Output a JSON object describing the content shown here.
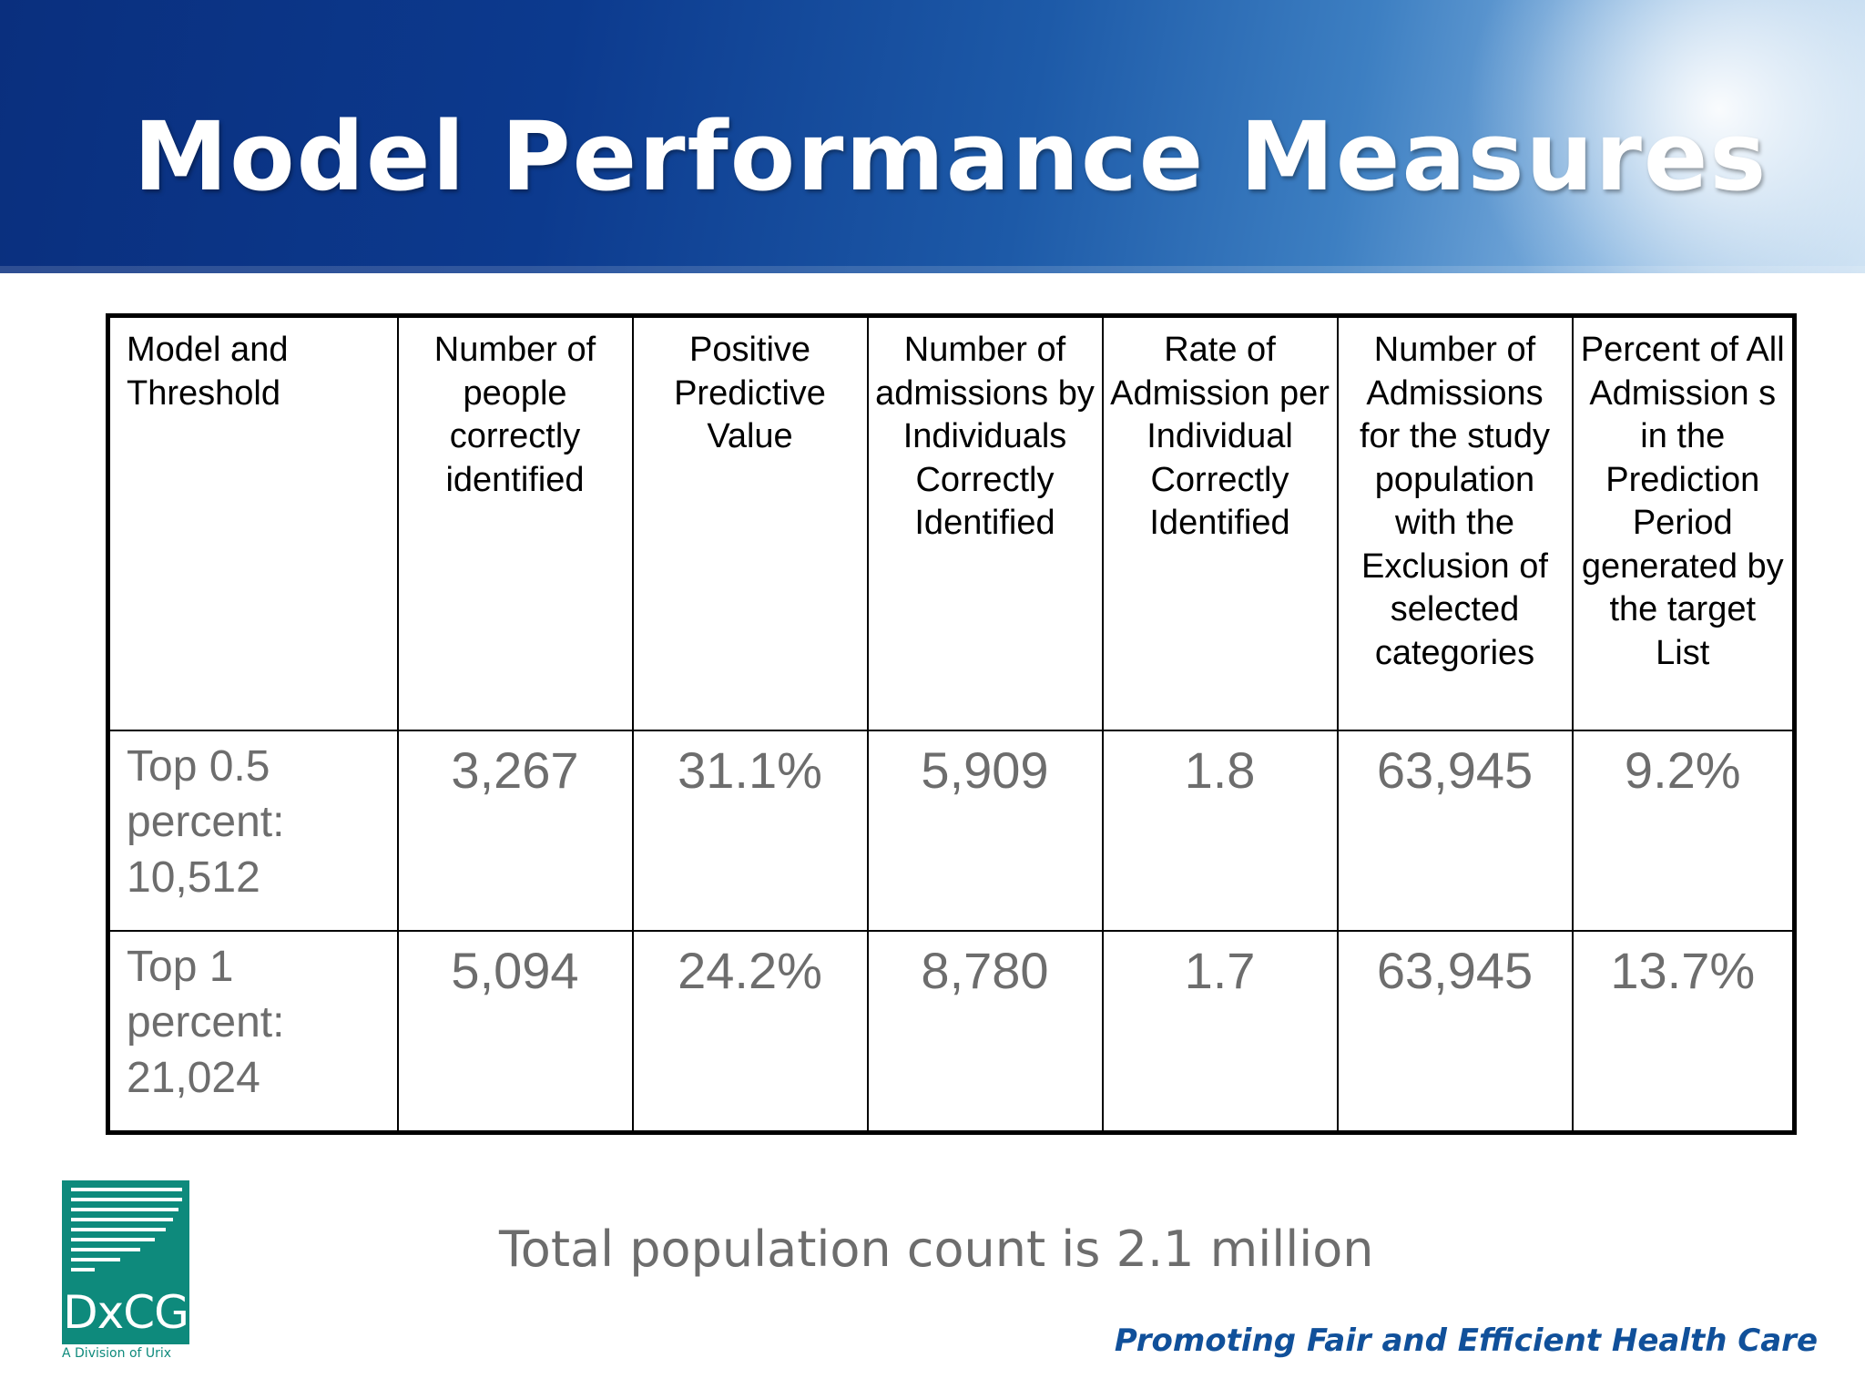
{
  "slide": {
    "title": "Model Performance Measures",
    "note": "Total population count is 2.1 million",
    "tagline": "Promoting Fair and Efficient Health Care"
  },
  "logo": {
    "text": "DxCG",
    "subtitle": "A Division of Urix",
    "brand_color": "#0e8a7c"
  },
  "colors": {
    "header_dark": "#0a2f7e",
    "header_light": "#c9dff2",
    "value_text": "#6d6d6d",
    "tagline": "#10509a"
  },
  "table": {
    "headers": [
      "Model and Threshold",
      "Number of people correctly identified",
      "Positive Predictive Value",
      "Number of admissions by Individuals Correctly Identified",
      "Rate of Admission per Individual Correctly Identified",
      "Number of Admissions for the study population with the Exclusion of selected categories",
      "Percent of All Admission s in the Prediction Period generated by the target List"
    ],
    "rows": [
      [
        "Top 0.5 percent: 10,512",
        "3,267",
        "31.1%",
        "5,909",
        "1.8",
        "63,945",
        "9.2%"
      ],
      [
        "Top 1 percent: 21,024",
        "5,094",
        "24.2%",
        "8,780",
        "1.7",
        "63,945",
        "13.7%"
      ]
    ]
  }
}
